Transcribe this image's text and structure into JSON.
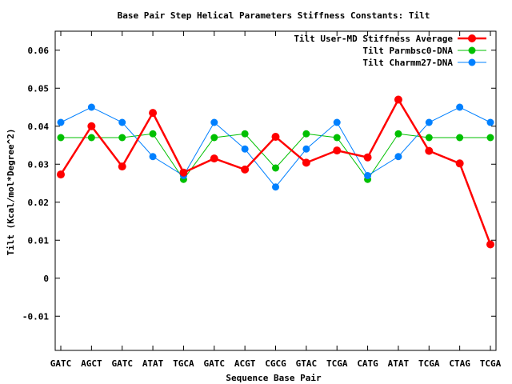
{
  "chart_data": {
    "type": "line",
    "title": "Base Pair Step Helical Parameters Stiffness Constants: Tilt",
    "xlabel": "Sequence Base Pair",
    "ylabel": "Tilt (Kcal/mol*Degree^2)",
    "ylim": [
      -0.019,
      0.065
    ],
    "yticks": [
      -0.01,
      0,
      0.01,
      0.02,
      0.03,
      0.04,
      0.05,
      0.06
    ],
    "ytick_labels": [
      "-0.01",
      "0",
      "0.01",
      "0.02",
      "0.03",
      "0.04",
      "0.05",
      "0.06"
    ],
    "grid": false,
    "legend_position": "top-right",
    "categories": [
      "GATC",
      "AGCT",
      "GATC",
      "ATAT",
      "TGCA",
      "GATC",
      "ACGT",
      "CGCG",
      "GTAC",
      "TCGA",
      "CATG",
      "ATAT",
      "TCGA",
      "CTAG",
      "TCGA"
    ],
    "series": [
      {
        "name": "Tilt User-MD Stiffness Average",
        "color": "#ff0000",
        "values": [
          0.0273,
          0.04,
          0.0294,
          0.0435,
          0.0278,
          0.0315,
          0.0286,
          0.0372,
          0.0304,
          0.0336,
          0.0318,
          0.047,
          0.0335,
          0.0302,
          0.0089
        ]
      },
      {
        "name": "Tilt Parmbsc0-DNA",
        "color": "#00c000",
        "values": [
          0.037,
          0.037,
          0.037,
          0.038,
          0.026,
          0.037,
          0.038,
          0.029,
          0.038,
          0.037,
          0.026,
          0.038,
          0.037,
          0.037,
          0.037
        ]
      },
      {
        "name": "Tilt Charmm27-DNA",
        "color": "#0080ff",
        "values": [
          0.041,
          0.045,
          0.041,
          0.032,
          0.027,
          0.041,
          0.034,
          0.024,
          0.034,
          0.041,
          0.027,
          0.032,
          0.041,
          0.045,
          0.041
        ]
      }
    ]
  }
}
